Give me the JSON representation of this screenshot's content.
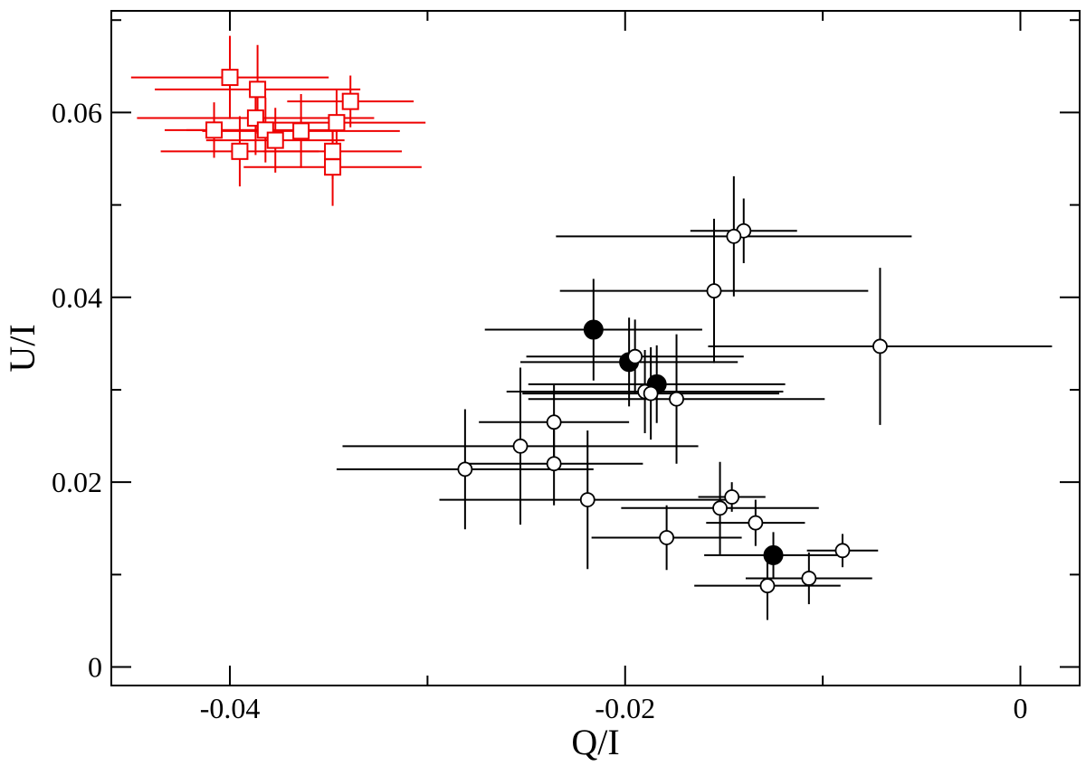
{
  "chart_data": {
    "type": "scatter",
    "title": "",
    "xlabel": "Q/I",
    "ylabel": "U/I",
    "xlim": [
      -0.046,
      0.003
    ],
    "ylim": [
      -0.002,
      0.071
    ],
    "x_ticks": [
      {
        "value": -0.04,
        "label": "-0.04"
      },
      {
        "value": -0.02,
        "label": "-0.02"
      },
      {
        "value": 0,
        "label": "0"
      }
    ],
    "y_ticks": [
      {
        "value": 0,
        "label": "0"
      },
      {
        "value": 0.02,
        "label": "0.02"
      },
      {
        "value": 0.04,
        "label": "0.04"
      },
      {
        "value": 0.06,
        "label": "0.06"
      }
    ],
    "grid": false,
    "legend": "none",
    "series": [
      {
        "marker": "square-open",
        "color": "#ee0000",
        "points": [
          {
            "x": -0.04,
            "y": 0.0638,
            "xerr": 0.005,
            "yerr": 0.0045
          },
          {
            "x": -0.0386,
            "y": 0.0625,
            "xerr": 0.0052,
            "yerr": 0.0048
          },
          {
            "x": -0.0339,
            "y": 0.0612,
            "xerr": 0.0032,
            "yerr": 0.0028
          },
          {
            "x": -0.0387,
            "y": 0.0594,
            "xerr": 0.006,
            "yerr": 0.004
          },
          {
            "x": -0.0346,
            "y": 0.0589,
            "xerr": 0.0045,
            "yerr": 0.0035
          },
          {
            "x": -0.0408,
            "y": 0.0581,
            "xerr": 0.0025,
            "yerr": 0.003
          },
          {
            "x": -0.0382,
            "y": 0.0581,
            "xerr": 0.004,
            "yerr": 0.0035
          },
          {
            "x": -0.0364,
            "y": 0.058,
            "xerr": 0.005,
            "yerr": 0.004
          },
          {
            "x": -0.0377,
            "y": 0.057,
            "xerr": 0.0035,
            "yerr": 0.0035
          },
          {
            "x": -0.0395,
            "y": 0.0558,
            "xerr": 0.004,
            "yerr": 0.0038
          },
          {
            "x": -0.0348,
            "y": 0.0558,
            "xerr": 0.0035,
            "yerr": 0.003
          },
          {
            "x": -0.0348,
            "y": 0.0541,
            "xerr": 0.0045,
            "yerr": 0.0042
          }
        ]
      },
      {
        "marker": "circle-filled",
        "color": "#000000",
        "points": [
          {
            "x": -0.0216,
            "y": 0.0365,
            "xerr": 0.0055,
            "yerr": 0.0055
          },
          {
            "x": -0.0198,
            "y": 0.033,
            "xerr": 0.0055,
            "yerr": 0.0048
          },
          {
            "x": -0.0184,
            "y": 0.0306,
            "xerr": 0.0065,
            "yerr": 0.0042
          },
          {
            "x": -0.0125,
            "y": 0.0121,
            "xerr": 0.0035,
            "yerr": 0.0025
          }
        ]
      },
      {
        "marker": "circle-open",
        "color": "#000000",
        "points": [
          {
            "x": -0.014,
            "y": 0.0472,
            "xerr": 0.0027,
            "yerr": 0.0035
          },
          {
            "x": -0.0145,
            "y": 0.0466,
            "xerr": 0.009,
            "yerr": 0.0065
          },
          {
            "x": -0.0155,
            "y": 0.0407,
            "xerr": 0.0078,
            "yerr": 0.0078
          },
          {
            "x": -0.0071,
            "y": 0.0347,
            "xerr": 0.0087,
            "yerr": 0.0085
          },
          {
            "x": -0.0195,
            "y": 0.0336,
            "xerr": 0.0055,
            "yerr": 0.004
          },
          {
            "x": -0.019,
            "y": 0.0298,
            "xerr": 0.007,
            "yerr": 0.0045
          },
          {
            "x": -0.0187,
            "y": 0.0296,
            "xerr": 0.0065,
            "yerr": 0.005
          },
          {
            "x": -0.0174,
            "y": 0.029,
            "xerr": 0.0075,
            "yerr": 0.007
          },
          {
            "x": -0.0236,
            "y": 0.0265,
            "xerr": 0.0038,
            "yerr": 0.004
          },
          {
            "x": -0.0253,
            "y": 0.0239,
            "xerr": 0.009,
            "yerr": 0.0085
          },
          {
            "x": -0.0236,
            "y": 0.022,
            "xerr": 0.0045,
            "yerr": 0.0045
          },
          {
            "x": -0.0281,
            "y": 0.0214,
            "xerr": 0.0065,
            "yerr": 0.0065
          },
          {
            "x": -0.0219,
            "y": 0.0181,
            "xerr": 0.0075,
            "yerr": 0.0075
          },
          {
            "x": -0.0146,
            "y": 0.0184,
            "xerr": 0.0017,
            "yerr": 0.0016
          },
          {
            "x": -0.0152,
            "y": 0.0172,
            "xerr": 0.005,
            "yerr": 0.005
          },
          {
            "x": -0.0134,
            "y": 0.0156,
            "xerr": 0.0025,
            "yerr": 0.0025
          },
          {
            "x": -0.0179,
            "y": 0.014,
            "xerr": 0.0038,
            "yerr": 0.0035
          },
          {
            "x": -0.009,
            "y": 0.0126,
            "xerr": 0.0018,
            "yerr": 0.0018
          },
          {
            "x": -0.0107,
            "y": 0.0096,
            "xerr": 0.0032,
            "yerr": 0.0028
          },
          {
            "x": -0.0128,
            "y": 0.0088,
            "xerr": 0.0037,
            "yerr": 0.0037
          }
        ]
      }
    ]
  }
}
